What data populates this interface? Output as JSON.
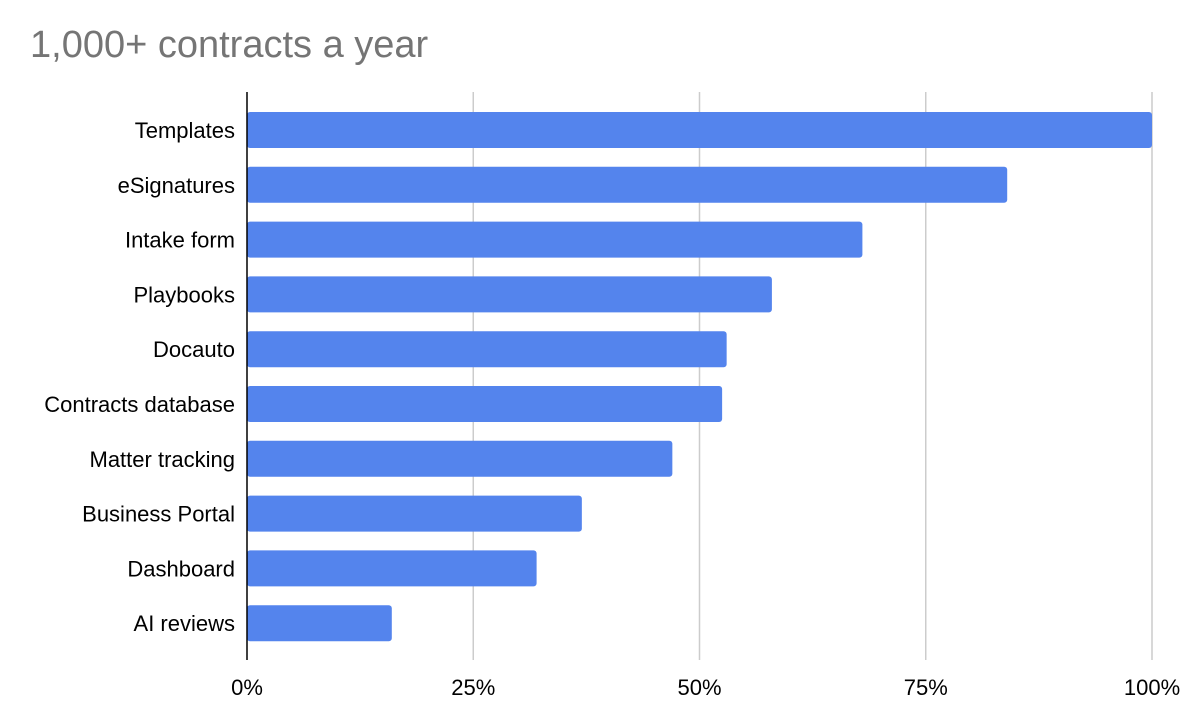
{
  "chart_data": {
    "type": "bar",
    "orientation": "horizontal",
    "title": "1,000+ contracts a year",
    "xlabel": "",
    "ylabel": "",
    "categories": [
      "Templates",
      "eSignatures",
      "Intake form",
      "Playbooks",
      "Docauto",
      "Contracts database",
      "Matter tracking",
      "Business Portal",
      "Dashboard",
      "AI reviews"
    ],
    "values": [
      100,
      84,
      68,
      58,
      53,
      52.5,
      47,
      37,
      32,
      16
    ],
    "xlim": [
      0,
      100
    ],
    "xticks": [
      "0%",
      "25%",
      "50%",
      "75%",
      "100%"
    ],
    "grid": "vertical",
    "legend": "none",
    "bar_color": "#5484ED",
    "title_color": "#757575",
    "grid_color": "#cccccc",
    "axis_color": "#000000"
  }
}
